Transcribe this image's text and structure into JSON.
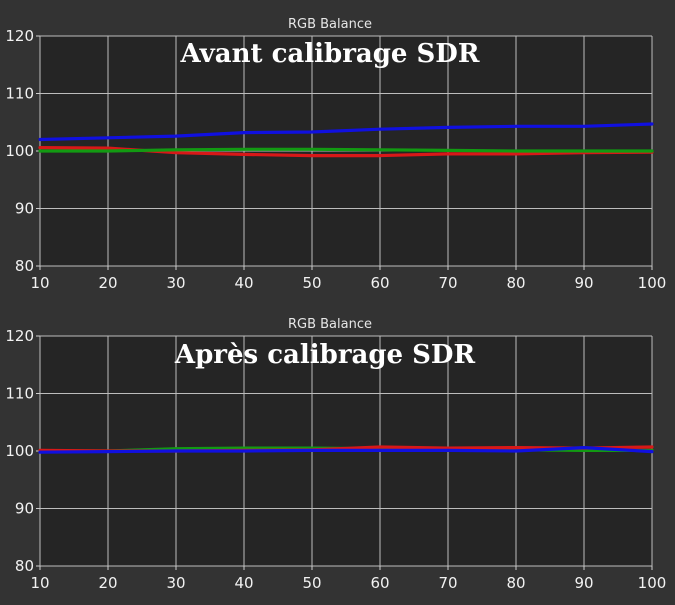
{
  "chart_data": [
    {
      "type": "line",
      "title": "RGB Balance",
      "annotation": "Avant calibrage SDR",
      "x": [
        10,
        20,
        30,
        40,
        50,
        60,
        70,
        80,
        90,
        100
      ],
      "xlim": [
        10,
        100
      ],
      "ylim": [
        80,
        120
      ],
      "xticks": [
        10,
        20,
        30,
        40,
        50,
        60,
        70,
        80,
        90,
        100
      ],
      "yticks": [
        80,
        90,
        100,
        110,
        120
      ],
      "grid": true,
      "series": [
        {
          "color": "#1010e0",
          "values": [
            102.0,
            102.3,
            102.6,
            103.2,
            103.3,
            103.8,
            104.1,
            104.3,
            104.3,
            104.7
          ]
        },
        {
          "color": "#d81818",
          "values": [
            100.6,
            100.5,
            99.7,
            99.4,
            99.2,
            99.2,
            99.5,
            99.5,
            99.7,
            99.8
          ]
        },
        {
          "color": "#129a12",
          "values": [
            100.0,
            100.0,
            100.2,
            100.3,
            100.3,
            100.2,
            100.1,
            100.0,
            100.0,
            100.0
          ]
        }
      ]
    },
    {
      "type": "line",
      "title": "RGB Balance",
      "annotation": "Après calibrage SDR",
      "x": [
        10,
        20,
        30,
        40,
        50,
        60,
        70,
        80,
        90,
        100
      ],
      "xlim": [
        10,
        100
      ],
      "ylim": [
        80,
        120
      ],
      "xticks": [
        10,
        20,
        30,
        40,
        50,
        60,
        70,
        80,
        90,
        100
      ],
      "yticks": [
        80,
        90,
        100,
        110,
        120
      ],
      "grid": true,
      "series": [
        {
          "color": "#129a12",
          "values": [
            100.0,
            100.0,
            100.4,
            100.5,
            100.5,
            100.4,
            100.3,
            100.2,
            100.1,
            100.1
          ]
        },
        {
          "color": "#d81818",
          "values": [
            100.1,
            100.0,
            100.0,
            100.1,
            100.2,
            100.7,
            100.5,
            100.6,
            100.5,
            100.7
          ]
        },
        {
          "color": "#1010e0",
          "values": [
            99.8,
            99.9,
            100.0,
            100.0,
            100.1,
            100.1,
            100.1,
            100.0,
            100.6,
            99.9
          ]
        }
      ]
    }
  ]
}
